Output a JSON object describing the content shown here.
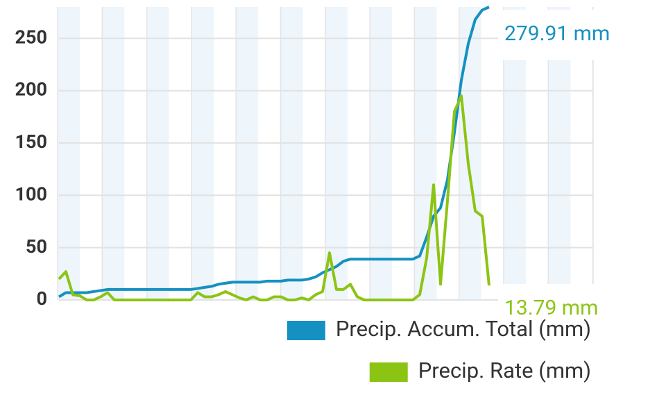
{
  "chart_data": {
    "type": "line",
    "x": [
      0,
      1,
      2,
      3,
      4,
      5,
      6,
      7,
      8,
      9,
      10,
      11,
      12,
      13,
      14,
      15,
      16,
      17,
      18,
      19,
      20,
      21,
      22,
      23,
      24,
      25,
      26,
      27,
      28,
      29,
      30,
      31,
      32,
      33,
      34,
      35,
      36,
      37,
      38,
      39,
      40,
      41,
      42,
      43,
      44,
      45,
      46,
      47,
      48,
      49,
      50,
      51,
      52,
      53,
      54,
      55,
      56,
      57,
      58,
      59,
      60,
      61,
      62
    ],
    "series": [
      {
        "name": "Precip. Accum. Total (mm)",
        "color": "#1591c1",
        "values": [
          3,
          7,
          7,
          7,
          7,
          8,
          9,
          10,
          10,
          10,
          10,
          10,
          10,
          10,
          10,
          10,
          10,
          10,
          10,
          10,
          11,
          12,
          13,
          15,
          16,
          17,
          17,
          17,
          17,
          17,
          18,
          18,
          18,
          19,
          19,
          19,
          20,
          22,
          26,
          29,
          32,
          37,
          39,
          39,
          39,
          39,
          39,
          39,
          39,
          39,
          39,
          39,
          42,
          60,
          80,
          88,
          115,
          160,
          210,
          245,
          268,
          277,
          279.91
        ],
        "value_labels": [
          null,
          null,
          null,
          null,
          null,
          null,
          null,
          null,
          null,
          null,
          null,
          null,
          null,
          null,
          null,
          null,
          null,
          null,
          null,
          null,
          null,
          null,
          null,
          null,
          null,
          null,
          null,
          null,
          null,
          null,
          null,
          null,
          null,
          null,
          null,
          null,
          null,
          null,
          null,
          null,
          null,
          null,
          null,
          null,
          null,
          null,
          null,
          null,
          null,
          null,
          null,
          null,
          null,
          null,
          null,
          null,
          null,
          null,
          null,
          null,
          null,
          null,
          "279.91 mm"
        ]
      },
      {
        "name": "Precip. Rate (mm)",
        "color": "#8cc414",
        "values": [
          20,
          27,
          5,
          4,
          0,
          0,
          3,
          7,
          0,
          0,
          0,
          0,
          0,
          0,
          0,
          0,
          0,
          0,
          0,
          0,
          7,
          3,
          3,
          5,
          8,
          5,
          2,
          0,
          3,
          0,
          0,
          3,
          3,
          0,
          0,
          2,
          0,
          5,
          8,
          45,
          10,
          10,
          15,
          3,
          0,
          0,
          0,
          0,
          0,
          0,
          0,
          0,
          5,
          40,
          110,
          15,
          95,
          180,
          195,
          130,
          85,
          80,
          13.79
        ],
        "value_labels": [
          null,
          null,
          null,
          null,
          null,
          null,
          null,
          null,
          null,
          null,
          null,
          null,
          null,
          null,
          null,
          null,
          null,
          null,
          null,
          null,
          null,
          null,
          null,
          null,
          null,
          null,
          null,
          null,
          null,
          null,
          null,
          null,
          null,
          null,
          null,
          null,
          null,
          null,
          null,
          null,
          null,
          null,
          null,
          null,
          null,
          null,
          null,
          null,
          null,
          null,
          null,
          null,
          null,
          null,
          null,
          null,
          null,
          null,
          null,
          null,
          null,
          null,
          "13.79 mm"
        ]
      }
    ],
    "xlim": [
      0,
      62
    ],
    "ylim": [
      0,
      280
    ],
    "yticks": [
      0,
      50,
      100,
      150,
      200,
      250
    ],
    "grid": true
  }
}
